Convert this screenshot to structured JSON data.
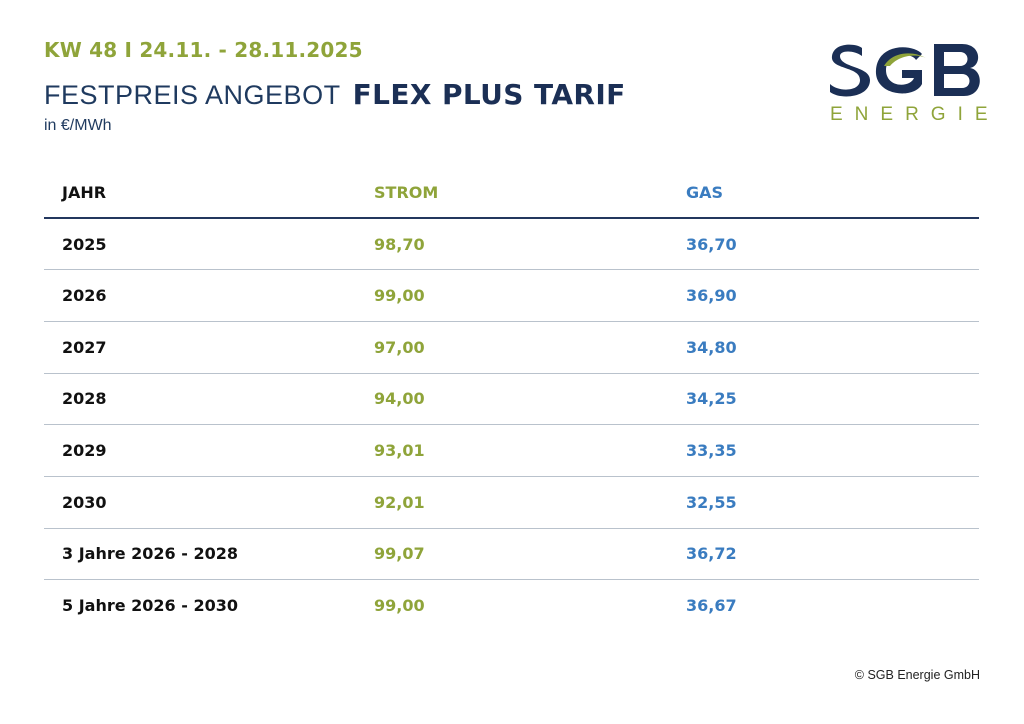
{
  "header": {
    "week": "KW 48 I 24.11. - 28.11.2025",
    "title_light": "FESTPREIS ANGEBOT",
    "title_bold": "FLEX PLUS TARIF",
    "unit": "in €/MWh"
  },
  "logo": {
    "wordmark": "SGB",
    "subtitle": "ENERGIE"
  },
  "colors": {
    "navy": "#1b2f55",
    "green": "#8fa43a",
    "blue": "#3a7cc0"
  },
  "table": {
    "headers": [
      "JAHR",
      "STROM",
      "GAS"
    ],
    "rows": [
      [
        "2025",
        "98,70",
        "36,70"
      ],
      [
        "2026",
        "99,00",
        "36,90"
      ],
      [
        "2027",
        "97,00",
        "34,80"
      ],
      [
        "2028",
        "94,00",
        "34,25"
      ],
      [
        "2029",
        "93,01",
        "33,35"
      ],
      [
        "2030",
        "92,01",
        "32,55"
      ],
      [
        "3 Jahre 2026 - 2028",
        "99,07",
        "36,72"
      ],
      [
        "5 Jahre 2026 - 2030",
        "99,00",
        "36,67"
      ]
    ]
  },
  "footer": {
    "copyright": "© SGB Energie GmbH"
  }
}
